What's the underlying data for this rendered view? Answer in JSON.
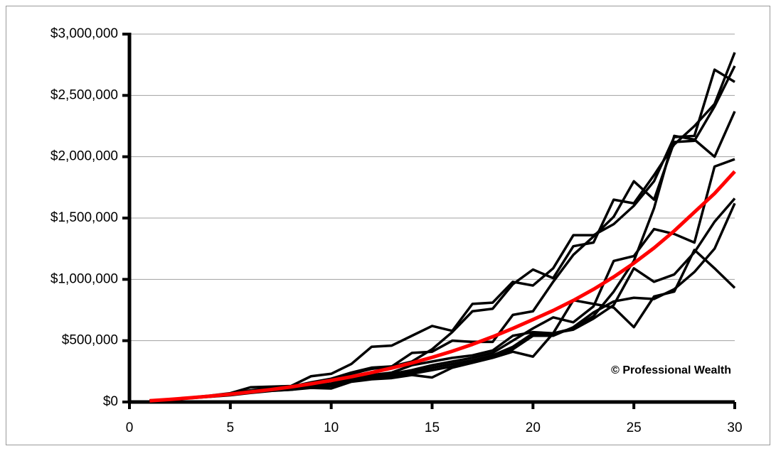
{
  "chart_data": {
    "type": "line",
    "annotation": "© Professional Wealth",
    "x": [
      1,
      2,
      3,
      4,
      5,
      6,
      7,
      8,
      9,
      10,
      11,
      12,
      13,
      14,
      15,
      16,
      17,
      18,
      19,
      20,
      21,
      22,
      23,
      24,
      25,
      26,
      27,
      28,
      29,
      30
    ],
    "xlim": [
      0,
      30
    ],
    "xticks": [
      0,
      5,
      10,
      15,
      20,
      25,
      30
    ],
    "ylim": [
      0,
      3000000
    ],
    "yticks": [
      {
        "value": 0,
        "label": "$0"
      },
      {
        "value": 500000,
        "label": "$500,000"
      },
      {
        "value": 1000000,
        "label": "$1,000,000"
      },
      {
        "value": 1500000,
        "label": "$1,500,000"
      },
      {
        "value": 2000000,
        "label": "$2,000,000"
      },
      {
        "value": 2500000,
        "label": "$2,500,000"
      },
      {
        "value": 3000000,
        "label": "$3,000,000"
      }
    ],
    "grid": true,
    "series": [
      {
        "color": "#000000",
        "values": [
          10000,
          22000,
          36000,
          52000,
          72000,
          120000,
          125000,
          130000,
          210000,
          230000,
          310000,
          450000,
          460000,
          540000,
          620000,
          580000,
          800000,
          810000,
          980000,
          950000,
          1090000,
          1360000,
          1360000,
          1450000,
          1600000,
          1800000,
          2160000,
          2170000,
          2710000,
          2610000
        ]
      },
      {
        "color": "#000000",
        "values": [
          10000,
          21000,
          35000,
          50000,
          68000,
          95000,
          115000,
          125000,
          160000,
          190000,
          240000,
          280000,
          290000,
          330000,
          430000,
          570000,
          740000,
          760000,
          960000,
          1080000,
          1010000,
          1270000,
          1300000,
          1650000,
          1620000,
          1850000,
          2100000,
          2250000,
          2430000,
          2850000
        ]
      },
      {
        "color": "#000000",
        "values": [
          10000,
          21000,
          34000,
          49000,
          66000,
          90000,
          108000,
          120000,
          150000,
          180000,
          230000,
          270000,
          290000,
          400000,
          410000,
          500000,
          490000,
          490000,
          710000,
          740000,
          980000,
          1200000,
          1350000,
          1510000,
          1800000,
          1650000,
          2120000,
          2130000,
          2410000,
          2740000
        ]
      },
      {
        "color": "#000000",
        "values": [
          10000,
          21000,
          34000,
          48000,
          64000,
          85000,
          100000,
          115000,
          130000,
          150000,
          200000,
          220000,
          240000,
          300000,
          330000,
          360000,
          380000,
          420000,
          540000,
          570000,
          560000,
          600000,
          700000,
          900000,
          1150000,
          1580000,
          2170000,
          2140000,
          2000000,
          2370000
        ]
      },
      {
        "color": "#000000",
        "values": [
          10000,
          20000,
          33000,
          46000,
          60000,
          80000,
          98000,
          110000,
          130000,
          150000,
          190000,
          210000,
          230000,
          260000,
          300000,
          330000,
          360000,
          400000,
          500000,
          600000,
          690000,
          650000,
          780000,
          1150000,
          1190000,
          1410000,
          1370000,
          1300000,
          1920000,
          1980000
        ]
      },
      {
        "color": "#000000",
        "values": [
          10000,
          20000,
          32000,
          45000,
          58000,
          78000,
          95000,
          105000,
          125000,
          140000,
          175000,
          195000,
          215000,
          245000,
          280000,
          310000,
          340000,
          380000,
          450000,
          560000,
          560000,
          590000,
          680000,
          790000,
          1090000,
          980000,
          1040000,
          1220000,
          1470000,
          1660000
        ]
      },
      {
        "color": "#000000",
        "values": [
          10000,
          20000,
          32000,
          44000,
          57000,
          76000,
          92000,
          100000,
          120000,
          130000,
          170000,
          190000,
          200000,
          230000,
          260000,
          290000,
          330000,
          370000,
          430000,
          540000,
          540000,
          610000,
          730000,
          820000,
          850000,
          840000,
          920000,
          1060000,
          1250000,
          1620000
        ]
      },
      {
        "color": "#000000",
        "values": [
          10000,
          20000,
          31000,
          43000,
          55000,
          74000,
          90000,
          100000,
          115000,
          110000,
          165000,
          185000,
          195000,
          220000,
          200000,
          280000,
          320000,
          360000,
          410000,
          370000,
          560000,
          830000,
          800000,
          770000,
          610000,
          860000,
          900000,
          1240000,
          1090000,
          930000
        ]
      },
      {
        "color": "#ff0000",
        "values": [
          10000,
          21000,
          34000,
          48000,
          64000,
          82000,
          101000,
          123000,
          148000,
          176000,
          206000,
          240000,
          277000,
          318000,
          364000,
          414000,
          470000,
          532000,
          600000,
          672000,
          746000,
          828000,
          919000,
          1020000,
          1132000,
          1256000,
          1395000,
          1548000,
          1700000,
          1880000
        ]
      }
    ]
  }
}
